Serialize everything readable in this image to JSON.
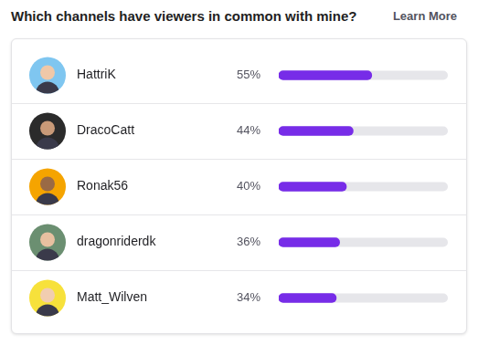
{
  "chart_data": {
    "type": "bar",
    "title": "Which channels have viewers in common with mine?",
    "annotations": [
      "Learn More"
    ],
    "categories": [
      "HattriK",
      "DracoCatt",
      "Ronak56",
      "dragonriderdk",
      "Matt_Wilven"
    ],
    "values": [
      55,
      44,
      40,
      36,
      34
    ],
    "value_labels": [
      "55%",
      "44%",
      "40%",
      "36%",
      "34%"
    ],
    "color": "#772ce8",
    "orientation": "horizontal",
    "xlim": [
      0,
      100
    ],
    "data_labels": true,
    "tick_labels": "y",
    "grid": false
  }
}
